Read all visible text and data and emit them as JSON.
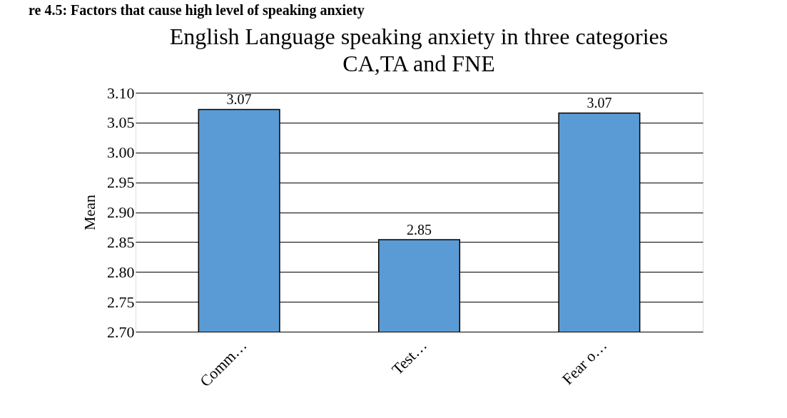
{
  "chart_data": {
    "type": "bar",
    "title": [
      "English Language speaking anxiety in three categories",
      "CA,TA and FNE"
    ],
    "ylabel": "Mean",
    "categories": [
      "Comm…",
      "Test…",
      "Fear o…"
    ],
    "values": [
      3.072,
      2.854,
      3.066
    ],
    "value_labels": [
      "3.07",
      "2.85",
      "3.07"
    ],
    "color": "#5b9bd5",
    "ylim": [
      2.7,
      3.1
    ],
    "yticks": [
      {
        "value": 2.7,
        "label": "2.70"
      },
      {
        "value": 2.75,
        "label": "2.75"
      },
      {
        "value": 2.8,
        "label": "2.80"
      },
      {
        "value": 2.85,
        "label": "2.85"
      },
      {
        "value": 2.9,
        "label": "2.90"
      },
      {
        "value": 2.95,
        "label": "2.95"
      },
      {
        "value": 3.0,
        "label": "3.00"
      },
      {
        "value": 3.05,
        "label": "3.05"
      },
      {
        "value": 3.1,
        "label": "3.10"
      }
    ],
    "grid": "y",
    "annotations": [
      "re 4.5: Factors that cause high level of speaking anxiety"
    ]
  }
}
